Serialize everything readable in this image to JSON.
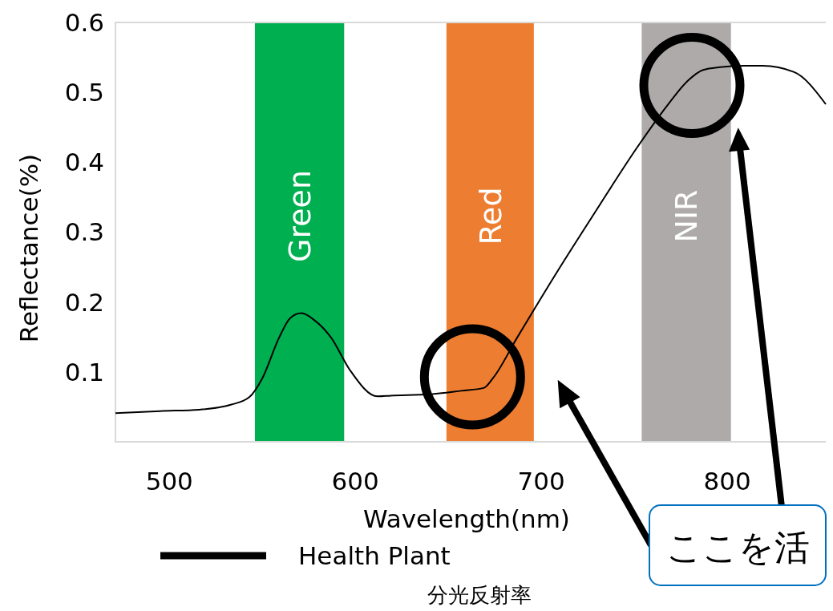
{
  "chart_data": {
    "type": "line",
    "title": "分光反射率",
    "xlabel": "Wavelength(nm)",
    "ylabel": "Reflectance(%)",
    "x": [
      471,
      495,
      516,
      533,
      543,
      550,
      559,
      565,
      571,
      578,
      587,
      597,
      612,
      619,
      640,
      657,
      669,
      674,
      687,
      708,
      730,
      751,
      768,
      779,
      787,
      796,
      809,
      819,
      836,
      853
    ],
    "series": [
      {
        "name": "Health Plant",
        "color": "#000000",
        "values": [
          0.041,
          0.044,
          0.046,
          0.053,
          0.064,
          0.091,
          0.149,
          0.177,
          0.184,
          0.174,
          0.149,
          0.103,
          0.065,
          0.066,
          0.068,
          0.073,
          0.077,
          0.091,
          0.149,
          0.241,
          0.333,
          0.419,
          0.482,
          0.517,
          0.532,
          0.536,
          0.538,
          0.538,
          0.529,
          0.483
        ]
      }
    ],
    "xlim": [
      471,
      853
    ],
    "xticks": [
      500,
      600,
      700,
      800
    ],
    "ylim": [
      0,
      0.6
    ],
    "yticks": [
      0.1,
      0.2,
      0.3,
      0.4,
      0.5,
      0.6
    ],
    "bands": [
      {
        "axis": "x",
        "from": 546,
        "to": 594,
        "label": "Green",
        "color": "#00b050"
      },
      {
        "axis": "x",
        "from": 649,
        "to": 696,
        "label": "Red",
        "color": "#ed7d31"
      },
      {
        "axis": "x",
        "from": 754,
        "to": 802,
        "label": "NIR",
        "color": "#aeaaaa"
      }
    ],
    "annotations": [
      "ここを活"
    ],
    "legend": "bottom",
    "grid": false
  }
}
